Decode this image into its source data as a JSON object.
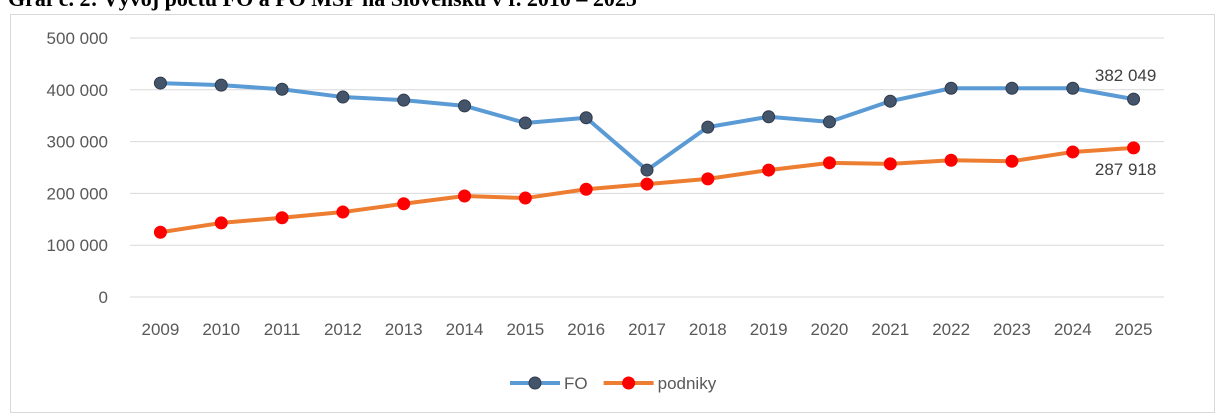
{
  "chart_data": {
    "type": "line",
    "title": "Graf č. 2: Vývoj počtu FO a PO MSP na Slovensku v r. 2010 – 2025",
    "categories": [
      "2009",
      "2010",
      "2011",
      "2012",
      "2013",
      "2014",
      "2015",
      "2016",
      "2017",
      "2018",
      "2019",
      "2020",
      "2021",
      "2022",
      "2023",
      "2024",
      "2025"
    ],
    "series": [
      {
        "name": "FO",
        "color": "#5b9bd5",
        "marker_color": "#44546a",
        "values": [
          413000,
          409000,
          401000,
          386000,
          380000,
          369000,
          336000,
          346000,
          245000,
          328000,
          348000,
          338000,
          378000,
          403000,
          403000,
          403000,
          382049
        ],
        "value_labels": [
          null,
          null,
          null,
          null,
          null,
          null,
          null,
          null,
          null,
          null,
          null,
          null,
          null,
          null,
          null,
          null,
          "382 049"
        ]
      },
      {
        "name": "podniky",
        "color": "#ed7d31",
        "marker_color": "#ff0000",
        "values": [
          125000,
          143000,
          153000,
          164000,
          180000,
          195000,
          191000,
          208000,
          218000,
          228000,
          245000,
          259000,
          257000,
          264000,
          262000,
          280000,
          287918
        ],
        "value_labels": [
          null,
          null,
          null,
          null,
          null,
          null,
          null,
          null,
          null,
          null,
          null,
          null,
          null,
          null,
          null,
          null,
          "287 918"
        ]
      }
    ],
    "ylim": [
      0,
      500000
    ],
    "yticks": [
      0,
      {
        "value": 100000,
        "label": "100 000"
      },
      {
        "value": 200000,
        "label": "200 000"
      },
      {
        "value": 300000,
        "label": "300 000"
      },
      {
        "value": 400000,
        "label": "400 000"
      },
      {
        "value": 500000,
        "label": "500 000"
      }
    ],
    "grid": true,
    "legend": "bottom"
  }
}
